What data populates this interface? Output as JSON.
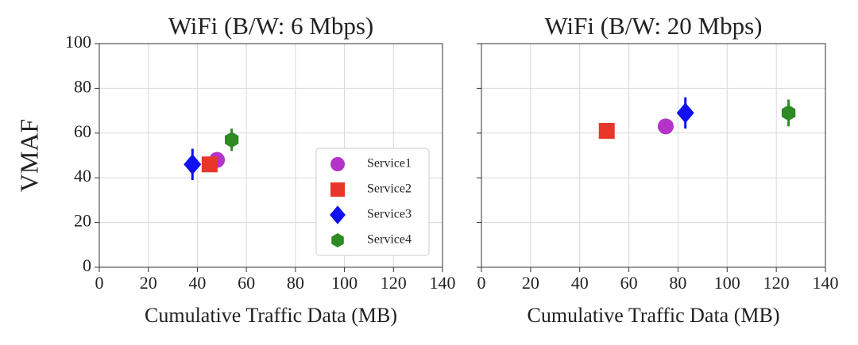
{
  "chart_data": [
    {
      "type": "scatter",
      "title": "WiFi (B/W: 6 Mbps)",
      "xlabel": "Cumulative Traffic Data (MB)",
      "ylabel": "VMAF",
      "xlim": [
        0,
        140
      ],
      "ylim": [
        0,
        100
      ],
      "xticks": [
        0,
        20,
        40,
        60,
        80,
        100,
        120,
        140
      ],
      "yticks": [
        0,
        20,
        40,
        60,
        80,
        100
      ],
      "grid": true,
      "legend": "lower right",
      "series": [
        {
          "name": "Service1",
          "color": "#b533c9",
          "marker": "circle",
          "x": [
            48
          ],
          "values": [
            48
          ],
          "errors": [
            2
          ]
        },
        {
          "name": "Service2",
          "color": "#e8372a",
          "marker": "square",
          "x": [
            45
          ],
          "values": [
            46
          ],
          "errors": [
            3
          ]
        },
        {
          "name": "Service3",
          "color": "#1010f0",
          "marker": "diamond",
          "x": [
            38
          ],
          "values": [
            46
          ],
          "errors": [
            7
          ]
        },
        {
          "name": "Service4",
          "color": "#2e8b24",
          "marker": "hexagon",
          "x": [
            54
          ],
          "values": [
            57
          ],
          "errors": [
            5
          ]
        }
      ]
    },
    {
      "type": "scatter",
      "title": "WiFi (B/W: 20 Mbps)",
      "xlabel": "Cumulative Traffic Data (MB)",
      "xlim": [
        0,
        140
      ],
      "xticks": [
        0,
        20,
        40,
        60,
        80,
        100,
        120,
        140
      ],
      "grid": true,
      "series": [
        {
          "color": "#b533c9",
          "marker": "circle",
          "x": [
            75
          ],
          "values": [
            63
          ],
          "errors": [
            2
          ]
        },
        {
          "color": "#e8372a",
          "marker": "square",
          "x": [
            51
          ],
          "values": [
            61
          ],
          "errors": [
            3
          ]
        },
        {
          "color": "#1010f0",
          "marker": "diamond",
          "x": [
            83
          ],
          "values": [
            69
          ],
          "errors": [
            7
          ]
        },
        {
          "color": "#2e8b24",
          "marker": "hexagon",
          "x": [
            125
          ],
          "values": [
            69
          ],
          "errors": [
            6
          ]
        }
      ]
    }
  ]
}
